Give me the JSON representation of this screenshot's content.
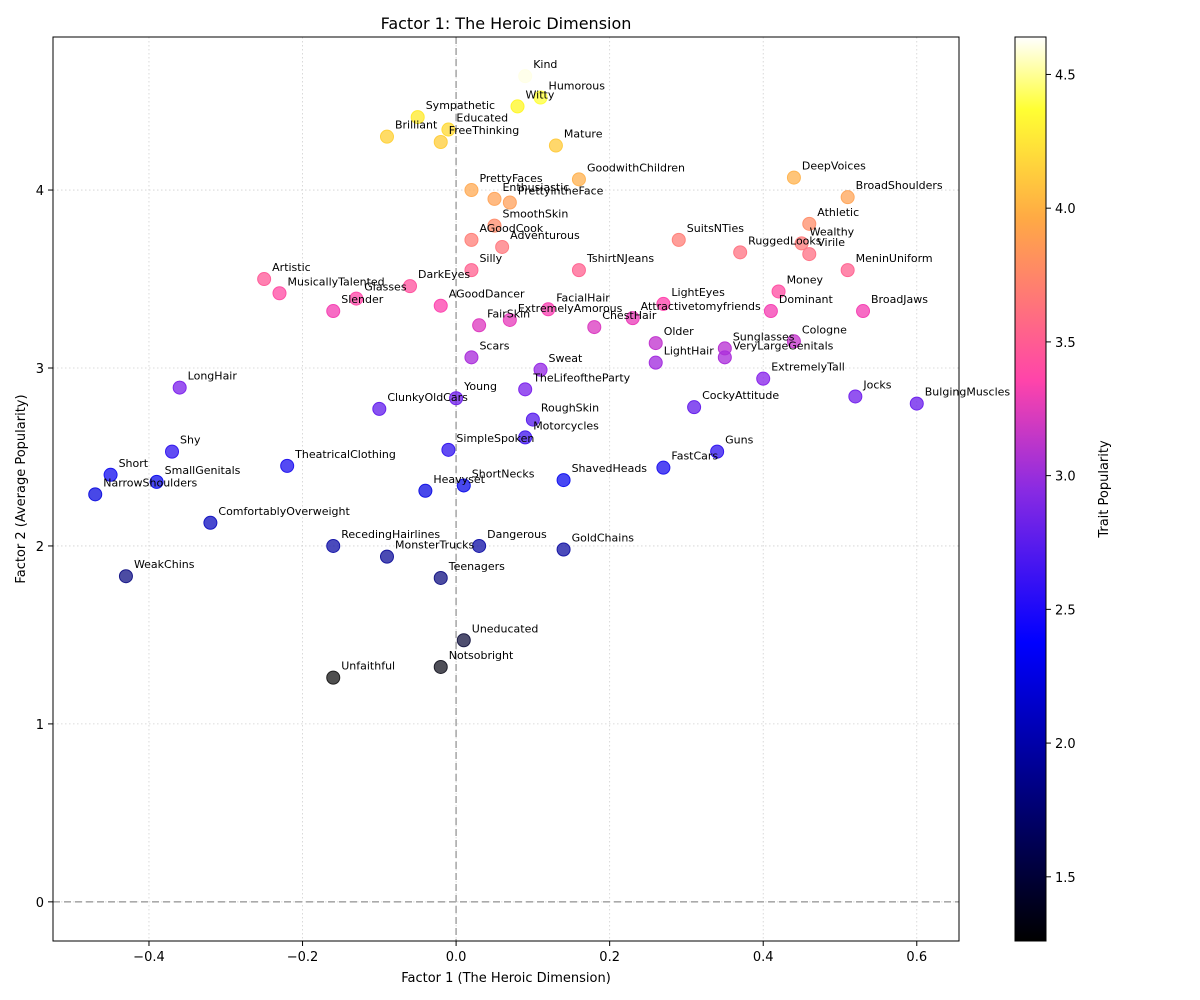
{
  "chart_data": {
    "type": "scatter",
    "title": "Factor 1: The Heroic Dimension",
    "xlabel": "Factor 1 (The Heroic Dimension)",
    "ylabel": "Factor 2 (Average Popularity)",
    "xlim": [
      -0.525,
      0.655
    ],
    "ylim": [
      -0.22,
      4.86
    ],
    "xticks": [
      -0.4,
      -0.2,
      0.0,
      0.2,
      0.4,
      0.6
    ],
    "xtick_labels": [
      "−0.4",
      "−0.2",
      "0.0",
      "0.2",
      "0.4",
      "0.6"
    ],
    "yticks": [
      0,
      1,
      2,
      3,
      4
    ],
    "ytick_labels": [
      "0",
      "1",
      "2",
      "3",
      "4"
    ],
    "grid": true,
    "reference_lines": {
      "x": 0,
      "y": 0
    },
    "colorbar": {
      "label": "Trait Popularity",
      "colormap": "gnuplot2",
      "range": [
        1.26,
        4.64
      ],
      "ticks": [
        1.5,
        2.0,
        2.5,
        3.0,
        3.5,
        4.0,
        4.5
      ],
      "tick_labels": [
        "1.5",
        "2.0",
        "2.5",
        "3.0",
        "3.5",
        "4.0",
        "4.5"
      ]
    },
    "points": [
      {
        "label": "Kind",
        "x": 0.09,
        "y": 4.64
      },
      {
        "label": "Humorous",
        "x": 0.11,
        "y": 4.52
      },
      {
        "label": "Witty",
        "x": 0.08,
        "y": 4.47
      },
      {
        "label": "Sympathetic",
        "x": -0.05,
        "y": 4.41
      },
      {
        "label": "Educated",
        "x": -0.01,
        "y": 4.34
      },
      {
        "label": "Brilliant",
        "x": -0.09,
        "y": 4.3
      },
      {
        "label": "FreeThinking",
        "x": -0.02,
        "y": 4.27
      },
      {
        "label": "Mature",
        "x": 0.13,
        "y": 4.25
      },
      {
        "label": "DeepVoices",
        "x": 0.44,
        "y": 4.07
      },
      {
        "label": "GoodwithChildren",
        "x": 0.16,
        "y": 4.06
      },
      {
        "label": "PrettyFaces",
        "x": 0.02,
        "y": 4.0
      },
      {
        "label": "BroadShoulders",
        "x": 0.51,
        "y": 3.96
      },
      {
        "label": "Enthusiastic",
        "x": 0.05,
        "y": 3.95
      },
      {
        "label": "PrettyintheFace",
        "x": 0.07,
        "y": 3.93
      },
      {
        "label": "Athletic",
        "x": 0.46,
        "y": 3.81
      },
      {
        "label": "SmoothSkin",
        "x": 0.05,
        "y": 3.8
      },
      {
        "label": "SuitsNTies",
        "x": 0.29,
        "y": 3.72
      },
      {
        "label": "AGoodCook",
        "x": 0.02,
        "y": 3.72
      },
      {
        "label": "Wealthy",
        "x": 0.45,
        "y": 3.7
      },
      {
        "label": "Adventurous",
        "x": 0.06,
        "y": 3.68
      },
      {
        "label": "RuggedLooks",
        "x": 0.37,
        "y": 3.65
      },
      {
        "label": "Virile",
        "x": 0.46,
        "y": 3.64
      },
      {
        "label": "MeninUniform",
        "x": 0.51,
        "y": 3.55
      },
      {
        "label": "TshirtNJeans",
        "x": 0.16,
        "y": 3.55
      },
      {
        "label": "Silly",
        "x": 0.02,
        "y": 3.55
      },
      {
        "label": "Artistic",
        "x": -0.25,
        "y": 3.5
      },
      {
        "label": "DarkEyes",
        "x": -0.06,
        "y": 3.46
      },
      {
        "label": "Money",
        "x": 0.42,
        "y": 3.43
      },
      {
        "label": "MusicallyTalented",
        "x": -0.23,
        "y": 3.42
      },
      {
        "label": "Glasses",
        "x": -0.13,
        "y": 3.39
      },
      {
        "label": "LightEyes",
        "x": 0.27,
        "y": 3.36
      },
      {
        "label": "AGoodDancer",
        "x": -0.02,
        "y": 3.35
      },
      {
        "label": "FacialHair",
        "x": 0.12,
        "y": 3.33
      },
      {
        "label": "Dominant",
        "x": 0.41,
        "y": 3.32
      },
      {
        "label": "BroadJaws",
        "x": 0.53,
        "y": 3.32
      },
      {
        "label": "Slender",
        "x": -0.16,
        "y": 3.32
      },
      {
        "label": "Attractivetomyfriends",
        "x": 0.23,
        "y": 3.28
      },
      {
        "label": "ExtremelyAmorous",
        "x": 0.07,
        "y": 3.27
      },
      {
        "label": "FairSkin",
        "x": 0.03,
        "y": 3.24
      },
      {
        "label": "ChestHair",
        "x": 0.18,
        "y": 3.23
      },
      {
        "label": "Cologne",
        "x": 0.44,
        "y": 3.15
      },
      {
        "label": "Older",
        "x": 0.26,
        "y": 3.14
      },
      {
        "label": "Sunglasses",
        "x": 0.35,
        "y": 3.11
      },
      {
        "label": "VeryLargeGenitals",
        "x": 0.35,
        "y": 3.06
      },
      {
        "label": "Scars",
        "x": 0.02,
        "y": 3.06
      },
      {
        "label": "LightHair",
        "x": 0.26,
        "y": 3.03
      },
      {
        "label": "Sweat",
        "x": 0.11,
        "y": 2.99
      },
      {
        "label": "ExtremelyTall",
        "x": 0.4,
        "y": 2.94
      },
      {
        "label": "LongHair",
        "x": -0.36,
        "y": 2.89
      },
      {
        "label": "TheLifeoftheParty",
        "x": 0.09,
        "y": 2.88
      },
      {
        "label": "Jocks",
        "x": 0.52,
        "y": 2.84
      },
      {
        "label": "Young",
        "x": 0.0,
        "y": 2.83
      },
      {
        "label": "BulgingMuscles",
        "x": 0.6,
        "y": 2.8
      },
      {
        "label": "CockyAttitude",
        "x": 0.31,
        "y": 2.78
      },
      {
        "label": "ClunkyOldCars",
        "x": -0.1,
        "y": 2.77
      },
      {
        "label": "RoughSkin",
        "x": 0.1,
        "y": 2.71
      },
      {
        "label": "Motorcycles",
        "x": 0.09,
        "y": 2.61
      },
      {
        "label": "SimpleSpoken",
        "x": -0.01,
        "y": 2.54
      },
      {
        "label": "Shy",
        "x": -0.37,
        "y": 2.53
      },
      {
        "label": "Guns",
        "x": 0.34,
        "y": 2.53
      },
      {
        "label": "TheatricalClothing",
        "x": -0.22,
        "y": 2.45
      },
      {
        "label": "FastCars",
        "x": 0.27,
        "y": 2.44
      },
      {
        "label": "Short",
        "x": -0.45,
        "y": 2.4
      },
      {
        "label": "ShavedHeads",
        "x": 0.14,
        "y": 2.37
      },
      {
        "label": "SmallGenitals",
        "x": -0.39,
        "y": 2.36
      },
      {
        "label": "ShortNecks",
        "x": 0.01,
        "y": 2.34
      },
      {
        "label": "Heavyset",
        "x": -0.04,
        "y": 2.31
      },
      {
        "label": "NarrowShoulders",
        "x": -0.47,
        "y": 2.29
      },
      {
        "label": "ComfortablyOverweight",
        "x": -0.32,
        "y": 2.13
      },
      {
        "label": "RecedingHairlines",
        "x": -0.16,
        "y": 2.0
      },
      {
        "label": "Dangerous",
        "x": 0.03,
        "y": 2.0
      },
      {
        "label": "GoldChains",
        "x": 0.14,
        "y": 1.98
      },
      {
        "label": "MonsterTrucks",
        "x": -0.09,
        "y": 1.94
      },
      {
        "label": "WeakChins",
        "x": -0.43,
        "y": 1.83
      },
      {
        "label": "Teenagers",
        "x": -0.02,
        "y": 1.82
      },
      {
        "label": "Uneducated",
        "x": 0.01,
        "y": 1.47
      },
      {
        "label": "Notsobright",
        "x": -0.02,
        "y": 1.32
      },
      {
        "label": "Unfaithful",
        "x": -0.16,
        "y": 1.26
      }
    ]
  }
}
